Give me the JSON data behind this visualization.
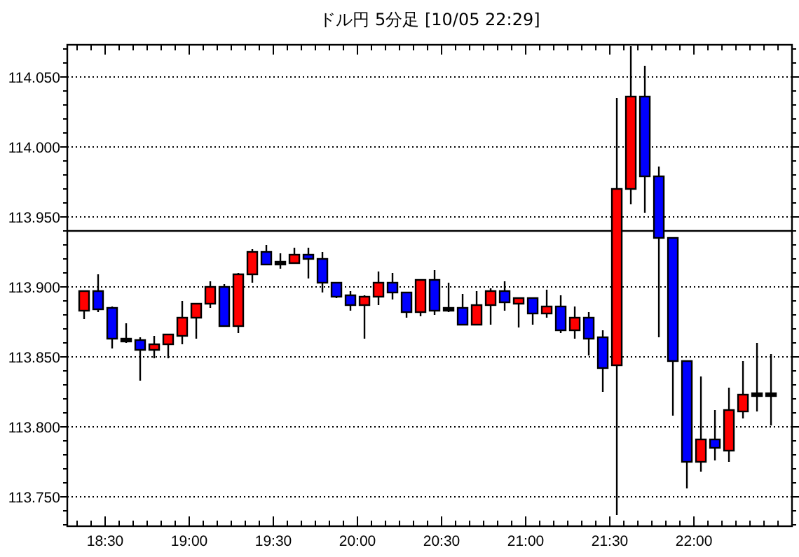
{
  "chart_data": {
    "type": "candlestick",
    "title": "ドル円 5分足 [10/05 22:29]",
    "x": [
      18.375,
      18.4583,
      18.5417,
      18.625,
      18.7083,
      18.7917,
      18.875,
      18.9583,
      19.0417,
      19.125,
      19.2083,
      19.2917,
      19.375,
      19.4583,
      19.5417,
      19.625,
      19.7083,
      19.7917,
      19.875,
      19.9583,
      20.0417,
      20.125,
      20.2083,
      20.2917,
      20.375,
      20.4583,
      20.5417,
      20.625,
      20.7083,
      20.7917,
      20.875,
      20.9583,
      21.0417,
      21.125,
      21.2083,
      21.2917,
      21.375,
      21.4583,
      21.5417,
      21.625,
      21.7083,
      21.7917,
      21.875,
      21.9583,
      22.0417,
      22.125,
      22.2083,
      22.2917,
      22.375,
      22.4583
    ],
    "ohlc": [
      [
        113.883,
        113.897,
        113.877,
        113.897
      ],
      [
        113.897,
        113.909,
        113.882,
        113.884
      ],
      [
        113.885,
        113.886,
        113.856,
        113.863
      ],
      [
        113.862,
        113.874,
        113.86,
        113.862
      ],
      [
        113.862,
        113.864,
        113.833,
        113.855
      ],
      [
        113.855,
        113.865,
        113.849,
        113.859
      ],
      [
        113.859,
        113.866,
        113.849,
        113.866
      ],
      [
        113.865,
        113.89,
        113.859,
        113.878
      ],
      [
        113.878,
        113.888,
        113.863,
        113.888
      ],
      [
        113.888,
        113.904,
        113.885,
        113.9
      ],
      [
        113.9,
        113.902,
        113.872,
        113.872
      ],
      [
        113.872,
        113.91,
        113.867,
        113.909
      ],
      [
        113.909,
        113.927,
        113.903,
        113.925
      ],
      [
        113.925,
        113.93,
        113.916,
        113.916
      ],
      [
        113.917,
        113.924,
        113.913,
        113.917
      ],
      [
        113.917,
        113.928,
        113.917,
        113.923
      ],
      [
        113.923,
        113.928,
        113.906,
        113.92
      ],
      [
        113.92,
        113.925,
        113.896,
        113.903
      ],
      [
        113.903,
        113.903,
        113.892,
        113.893
      ],
      [
        113.894,
        113.897,
        113.883,
        113.887
      ],
      [
        113.887,
        113.894,
        113.863,
        113.893
      ],
      [
        113.893,
        113.911,
        113.887,
        113.903
      ],
      [
        113.903,
        113.91,
        113.891,
        113.896
      ],
      [
        113.896,
        113.896,
        113.878,
        113.882
      ],
      [
        113.882,
        113.905,
        113.879,
        113.905
      ],
      [
        113.905,
        113.912,
        113.88,
        113.883
      ],
      [
        113.884,
        113.903,
        113.882,
        113.884
      ],
      [
        113.885,
        113.895,
        113.873,
        113.873
      ],
      [
        113.873,
        113.897,
        113.873,
        113.887
      ],
      [
        113.887,
        113.899,
        113.873,
        113.897
      ],
      [
        113.897,
        113.904,
        113.883,
        113.889
      ],
      [
        113.888,
        113.892,
        113.871,
        113.892
      ],
      [
        113.892,
        113.892,
        113.873,
        113.881
      ],
      [
        113.881,
        113.898,
        113.878,
        113.886
      ],
      [
        113.886,
        113.894,
        113.867,
        113.869
      ],
      [
        113.869,
        113.886,
        113.863,
        113.878
      ],
      [
        113.878,
        113.882,
        113.851,
        113.863
      ],
      [
        113.864,
        113.869,
        113.825,
        113.842
      ],
      [
        113.844,
        114.035,
        113.737,
        113.97
      ],
      [
        113.97,
        114.072,
        113.959,
        114.036
      ],
      [
        114.036,
        114.058,
        113.953,
        113.979
      ],
      [
        113.979,
        113.986,
        113.864,
        113.935
      ],
      [
        113.935,
        113.935,
        113.808,
        113.847
      ],
      [
        113.847,
        113.847,
        113.756,
        113.775
      ],
      [
        113.775,
        113.836,
        113.768,
        113.791
      ],
      [
        113.791,
        113.812,
        113.776,
        113.785
      ],
      [
        113.783,
        113.828,
        113.775,
        113.812
      ],
      [
        113.811,
        113.847,
        113.806,
        113.823
      ],
      [
        113.823,
        113.86,
        113.811,
        113.823
      ],
      [
        113.823,
        113.852,
        113.801,
        113.823
      ]
    ],
    "colors": [
      "#ff0000",
      "#0000ff",
      "#0000ff",
      "#000000",
      "#0000ff",
      "#ff0000",
      "#ff0000",
      "#ff0000",
      "#ff0000",
      "#ff0000",
      "#0000ff",
      "#ff0000",
      "#ff0000",
      "#0000ff",
      "#000000",
      "#ff0000",
      "#0000ff",
      "#0000ff",
      "#0000ff",
      "#0000ff",
      "#ff0000",
      "#ff0000",
      "#0000ff",
      "#0000ff",
      "#ff0000",
      "#0000ff",
      "#000000",
      "#0000ff",
      "#ff0000",
      "#ff0000",
      "#0000ff",
      "#ff0000",
      "#0000ff",
      "#ff0000",
      "#0000ff",
      "#ff0000",
      "#0000ff",
      "#0000ff",
      "#ff0000",
      "#ff0000",
      "#0000ff",
      "#0000ff",
      "#0000ff",
      "#0000ff",
      "#ff0000",
      "#0000ff",
      "#ff0000",
      "#ff0000",
      "#000000",
      "#000000"
    ],
    "xlim": [
      18.275,
      22.583
    ],
    "xticks": [
      {
        "value": 18.3333,
        "label": null
      },
      {
        "value": 18.4167,
        "label": null
      },
      {
        "value": 18.5,
        "label": "18:30"
      },
      {
        "value": 18.5833,
        "label": null
      },
      {
        "value": 18.6667,
        "label": null
      },
      {
        "value": 18.75,
        "label": null
      },
      {
        "value": 18.8333,
        "label": null
      },
      {
        "value": 18.9167,
        "label": null
      },
      {
        "value": 19,
        "label": "19:00"
      },
      {
        "value": 19.0833,
        "label": null
      },
      {
        "value": 19.1667,
        "label": null
      },
      {
        "value": 19.25,
        "label": null
      },
      {
        "value": 19.3333,
        "label": null
      },
      {
        "value": 19.4167,
        "label": null
      },
      {
        "value": 19.5,
        "label": "19:30"
      },
      {
        "value": 19.5833,
        "label": null
      },
      {
        "value": 19.6667,
        "label": null
      },
      {
        "value": 19.75,
        "label": null
      },
      {
        "value": 19.8333,
        "label": null
      },
      {
        "value": 19.9167,
        "label": null
      },
      {
        "value": 20,
        "label": "20:00"
      },
      {
        "value": 20.0833,
        "label": null
      },
      {
        "value": 20.1667,
        "label": null
      },
      {
        "value": 20.25,
        "label": null
      },
      {
        "value": 20.3333,
        "label": null
      },
      {
        "value": 20.4167,
        "label": null
      },
      {
        "value": 20.5,
        "label": "20:30"
      },
      {
        "value": 20.5833,
        "label": null
      },
      {
        "value": 20.6667,
        "label": null
      },
      {
        "value": 20.75,
        "label": null
      },
      {
        "value": 20.8333,
        "label": null
      },
      {
        "value": 20.9167,
        "label": null
      },
      {
        "value": 21,
        "label": "21:00"
      },
      {
        "value": 21.0833,
        "label": null
      },
      {
        "value": 21.1667,
        "label": null
      },
      {
        "value": 21.25,
        "label": null
      },
      {
        "value": 21.3333,
        "label": null
      },
      {
        "value": 21.4167,
        "label": null
      },
      {
        "value": 21.5,
        "label": "21:30"
      },
      {
        "value": 21.5833,
        "label": null
      },
      {
        "value": 21.6667,
        "label": null
      },
      {
        "value": 21.75,
        "label": null
      },
      {
        "value": 21.8333,
        "label": null
      },
      {
        "value": 21.9167,
        "label": null
      },
      {
        "value": 22,
        "label": "22:00"
      },
      {
        "value": 22.0833,
        "label": null
      },
      {
        "value": 22.1667,
        "label": null
      },
      {
        "value": 22.25,
        "label": null
      },
      {
        "value": 22.3333,
        "label": null
      },
      {
        "value": 22.4167,
        "label": null
      },
      {
        "value": 22.5,
        "label": null
      }
    ],
    "ylim": [
      113.729,
      114.073
    ],
    "yticks": [
      {
        "value": 113.73,
        "label": null
      },
      {
        "value": 113.74,
        "label": null
      },
      {
        "value": 113.75,
        "label": "113.750"
      },
      {
        "value": 113.76,
        "label": null
      },
      {
        "value": 113.77,
        "label": null
      },
      {
        "value": 113.78,
        "label": null
      },
      {
        "value": 113.79,
        "label": null
      },
      {
        "value": 113.8,
        "label": "113.800"
      },
      {
        "value": 113.81,
        "label": null
      },
      {
        "value": 113.82,
        "label": null
      },
      {
        "value": 113.83,
        "label": null
      },
      {
        "value": 113.84,
        "label": null
      },
      {
        "value": 113.85,
        "label": "113.850"
      },
      {
        "value": 113.86,
        "label": null
      },
      {
        "value": 113.87,
        "label": null
      },
      {
        "value": 113.88,
        "label": null
      },
      {
        "value": 113.89,
        "label": null
      },
      {
        "value": 113.9,
        "label": "113.900"
      },
      {
        "value": 113.91,
        "label": null
      },
      {
        "value": 113.92,
        "label": null
      },
      {
        "value": 113.93,
        "label": null
      },
      {
        "value": 113.94,
        "label": null
      },
      {
        "value": 113.95,
        "label": "113.950"
      },
      {
        "value": 113.96,
        "label": null
      },
      {
        "value": 113.97,
        "label": null
      },
      {
        "value": 113.98,
        "label": null
      },
      {
        "value": 113.99,
        "label": null
      },
      {
        "value": 114,
        "label": "114.000"
      },
      {
        "value": 114.01,
        "label": null
      },
      {
        "value": 114.02,
        "label": null
      },
      {
        "value": 114.03,
        "label": null
      },
      {
        "value": 114.04,
        "label": null
      },
      {
        "value": 114.05,
        "label": "114.050"
      },
      {
        "value": 114.06,
        "label": null
      },
      {
        "value": 114.07,
        "label": null
      }
    ],
    "ref_lines": [
      {
        "axis": "y",
        "value": 113.94,
        "color": "#000000",
        "line_style": "solid"
      }
    ],
    "grid": "y"
  }
}
